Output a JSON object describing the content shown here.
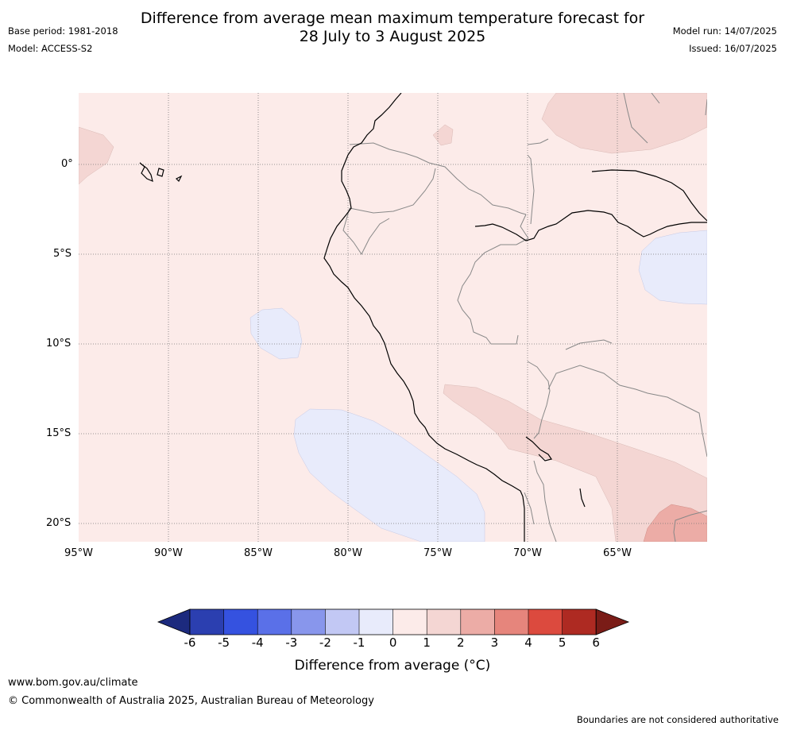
{
  "title_line1": "Difference from average mean maximum temperature forecast for",
  "title_line2": "28 July to 3 August 2025",
  "base_period": "Base period: 1981-2018",
  "model": "Model: ACCESS-S2",
  "model_run": "Model run: 14/07/2025",
  "issued": "Issued: 16/07/2025",
  "lat_labels": [
    "0°",
    "5°S",
    "10°S",
    "15°S",
    "20°S"
  ],
  "lon_labels": [
    "95°W",
    "90°W",
    "85°W",
    "80°W",
    "75°W",
    "70°W",
    "65°W"
  ],
  "colorbar": {
    "label": "Difference from average (°C)",
    "ticks": [
      "-6",
      "-5",
      "-4",
      "-3",
      "-2",
      "-1",
      "0",
      "1",
      "2",
      "3",
      "4",
      "5",
      "6"
    ],
    "colors": [
      "#1c2a7e",
      "#2b3fb0",
      "#3552e0",
      "#5a70e8",
      "#8896ec",
      "#c2c8f4",
      "#e8ebfb",
      "#fcebe9",
      "#f4d6d3",
      "#ecaca6",
      "#e6857c",
      "#dc4a3e",
      "#ae2a22",
      "#7a1c17"
    ]
  },
  "footer_url": "www.bom.gov.au/climate",
  "footer_copyright": "© Commonwealth of Australia 2025, Australian Bureau of Meteorology",
  "footer_disclaimer": "Boundaries are not considered authoritative"
}
